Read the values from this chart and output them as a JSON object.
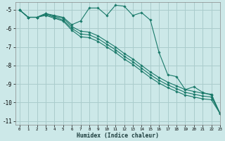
{
  "xlabel": "Humidex (Indice chaleur)",
  "ylabel": "",
  "background_color": "#cce8e8",
  "grid_color": "#aacccc",
  "line_color": "#1a7a6a",
  "xlim": [
    -0.5,
    23
  ],
  "ylim": [
    -11.2,
    -4.6
  ],
  "yticks": [
    -11,
    -10,
    -9,
    -8,
    -7,
    -6,
    -5
  ],
  "xticks": [
    0,
    1,
    2,
    3,
    4,
    5,
    6,
    7,
    8,
    9,
    10,
    11,
    12,
    13,
    14,
    15,
    16,
    17,
    18,
    19,
    20,
    21,
    22,
    23
  ],
  "lines": [
    {
      "x": [
        0,
        1,
        2,
        3,
        4,
        5,
        6,
        7,
        8,
        9,
        10,
        11,
        12,
        13,
        14,
        15,
        16,
        17,
        18,
        19,
        20,
        21,
        22,
        23
      ],
      "y": [
        -5.0,
        -5.4,
        -5.4,
        -5.2,
        -5.3,
        -5.4,
        -5.8,
        -5.6,
        -4.9,
        -4.9,
        -5.3,
        -4.75,
        -4.8,
        -5.3,
        -5.15,
        -5.55,
        -7.3,
        -8.5,
        -8.6,
        -9.3,
        -9.15,
        -9.45,
        -9.6,
        -10.6
      ]
    },
    {
      "x": [
        0,
        1,
        2,
        3,
        4,
        5,
        6,
        7,
        8,
        9,
        10,
        11,
        12,
        13,
        14,
        15,
        16,
        17,
        18,
        19,
        20,
        21,
        22,
        23
      ],
      "y": [
        -5.0,
        -5.4,
        -5.4,
        -5.2,
        -5.35,
        -5.45,
        -5.9,
        -6.15,
        -6.2,
        -6.4,
        -6.7,
        -7.0,
        -7.35,
        -7.65,
        -8.0,
        -8.35,
        -8.65,
        -8.9,
        -9.1,
        -9.3,
        -9.4,
        -9.5,
        -9.55,
        -10.6
      ]
    },
    {
      "x": [
        0,
        1,
        2,
        3,
        4,
        5,
        6,
        7,
        8,
        9,
        10,
        11,
        12,
        13,
        14,
        15,
        16,
        17,
        18,
        19,
        20,
        21,
        22,
        23
      ],
      "y": [
        -5.0,
        -5.4,
        -5.4,
        -5.25,
        -5.4,
        -5.55,
        -6.0,
        -6.3,
        -6.35,
        -6.55,
        -6.85,
        -7.15,
        -7.5,
        -7.8,
        -8.15,
        -8.5,
        -8.8,
        -9.05,
        -9.25,
        -9.45,
        -9.55,
        -9.65,
        -9.7,
        -10.6
      ]
    },
    {
      "x": [
        0,
        1,
        2,
        3,
        4,
        5,
        6,
        7,
        8,
        9,
        10,
        11,
        12,
        13,
        14,
        15,
        16,
        17,
        18,
        19,
        20,
        21,
        22,
        23
      ],
      "y": [
        -5.0,
        -5.4,
        -5.4,
        -5.3,
        -5.45,
        -5.6,
        -6.1,
        -6.45,
        -6.5,
        -6.7,
        -7.0,
        -7.3,
        -7.65,
        -7.95,
        -8.3,
        -8.65,
        -8.95,
        -9.2,
        -9.4,
        -9.6,
        -9.7,
        -9.8,
        -9.85,
        -10.6
      ]
    }
  ]
}
